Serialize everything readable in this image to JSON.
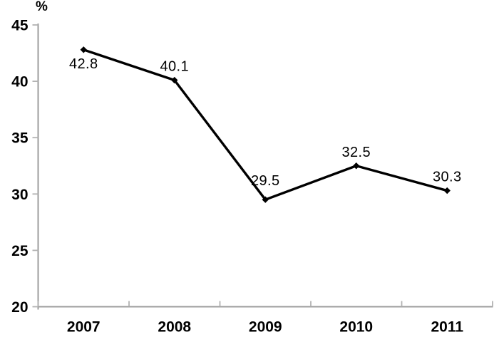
{
  "chart_data": {
    "type": "line",
    "title": "",
    "unit_label": "%",
    "categories": [
      "2007",
      "2008",
      "2009",
      "2010",
      "2011"
    ],
    "values": [
      42.8,
      40.1,
      29.5,
      32.5,
      30.3
    ],
    "data_labels": [
      "42.8",
      "40.1",
      "29.5",
      "32.5",
      "30.3"
    ],
    "label_placement": [
      "below",
      "above",
      "above",
      "above",
      "above"
    ],
    "label_dy": [
      26,
      -13,
      -20,
      -13,
      -13
    ],
    "xlabel": "",
    "ylabel": "%",
    "ylim": [
      20,
      45
    ],
    "yticks": [
      20,
      25,
      30,
      35,
      40,
      45
    ],
    "grid": false,
    "legend": "none",
    "line_color": "#000000",
    "marker": "diamond",
    "marker_color": "#000000",
    "axis_color": "#9d9d9d",
    "tick_color": "#b2b2b2",
    "text_color": "#000000"
  }
}
